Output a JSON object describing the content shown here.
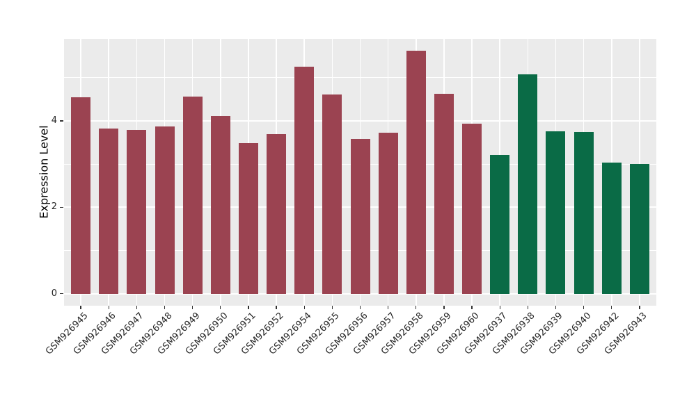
{
  "chart_data": {
    "type": "bar",
    "title": "",
    "xlabel": "",
    "ylabel": "Expression Level",
    "legend": "none",
    "grid": true,
    "panel_bg": "#EBEBEB",
    "grid_color": "#FFFFFF",
    "tick_color": "#333333",
    "text_color": "#262626",
    "y_ticks": [
      0,
      2,
      4
    ],
    "y_tick_labels": [
      "0",
      "2",
      "4"
    ],
    "y_minor_ticks": [
      1,
      3,
      5
    ],
    "ylim": [
      -0.28,
      5.9
    ],
    "x_tick_rotation_deg": 45,
    "group_colors": {
      "group1": "#9B4351",
      "group2": "#0A6B46"
    },
    "bars": [
      {
        "label": "GSM926945",
        "value": 4.55,
        "group": "group1"
      },
      {
        "label": "GSM926946",
        "value": 3.83,
        "group": "group1"
      },
      {
        "label": "GSM926947",
        "value": 3.79,
        "group": "group1"
      },
      {
        "label": "GSM926948",
        "value": 3.87,
        "group": "group1"
      },
      {
        "label": "GSM926949",
        "value": 4.56,
        "group": "group1"
      },
      {
        "label": "GSM926950",
        "value": 4.12,
        "group": "group1"
      },
      {
        "label": "GSM926951",
        "value": 3.48,
        "group": "group1"
      },
      {
        "label": "GSM926952",
        "value": 3.7,
        "group": "group1"
      },
      {
        "label": "GSM926954",
        "value": 5.26,
        "group": "group1"
      },
      {
        "label": "GSM926955",
        "value": 4.61,
        "group": "group1"
      },
      {
        "label": "GSM926956",
        "value": 3.59,
        "group": "group1"
      },
      {
        "label": "GSM926957",
        "value": 3.73,
        "group": "group1"
      },
      {
        "label": "GSM926958",
        "value": 5.62,
        "group": "group1"
      },
      {
        "label": "GSM926959",
        "value": 4.63,
        "group": "group1"
      },
      {
        "label": "GSM926960",
        "value": 3.94,
        "group": "group1"
      },
      {
        "label": "GSM926937",
        "value": 3.22,
        "group": "group2"
      },
      {
        "label": "GSM926938",
        "value": 5.08,
        "group": "group2"
      },
      {
        "label": "GSM926939",
        "value": 3.76,
        "group": "group2"
      },
      {
        "label": "GSM926940",
        "value": 3.74,
        "group": "group2"
      },
      {
        "label": "GSM926942",
        "value": 3.03,
        "group": "group2"
      },
      {
        "label": "GSM926943",
        "value": 3.0,
        "group": "group2"
      }
    ]
  }
}
